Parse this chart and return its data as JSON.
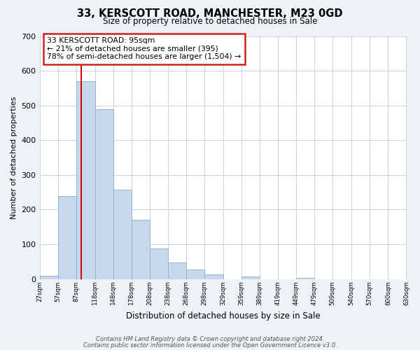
{
  "title": "33, KERSCOTT ROAD, MANCHESTER, M23 0GD",
  "subtitle": "Size of property relative to detached houses in Sale",
  "xlabel": "Distribution of detached houses by size in Sale",
  "ylabel": "Number of detached properties",
  "bar_edges": [
    27,
    57,
    87,
    118,
    148,
    178,
    208,
    238,
    268,
    298,
    329,
    359,
    389,
    419,
    449,
    479,
    509,
    540,
    570,
    600,
    630
  ],
  "bar_heights": [
    10,
    240,
    570,
    490,
    258,
    170,
    88,
    47,
    27,
    14,
    0,
    8,
    0,
    0,
    4,
    0,
    0,
    0,
    0,
    0
  ],
  "bar_color": "#c8d8ec",
  "bar_edgecolor": "#8ab0cc",
  "property_line_x": 95,
  "property_line_color": "#cc0000",
  "ylim": [
    0,
    700
  ],
  "yticks": [
    0,
    100,
    200,
    300,
    400,
    500,
    600,
    700
  ],
  "annotation_title": "33 KERSCOTT ROAD: 95sqm",
  "annotation_line1": "← 21% of detached houses are smaller (395)",
  "annotation_line2": "78% of semi-detached houses are larger (1,504) →",
  "footer1": "Contains HM Land Registry data © Crown copyright and database right 2024.",
  "footer2": "Contains public sector information licensed under the Open Government Licence v3.0.",
  "tick_labels": [
    "27sqm",
    "57sqm",
    "87sqm",
    "118sqm",
    "148sqm",
    "178sqm",
    "208sqm",
    "238sqm",
    "268sqm",
    "298sqm",
    "329sqm",
    "359sqm",
    "389sqm",
    "419sqm",
    "449sqm",
    "479sqm",
    "509sqm",
    "540sqm",
    "570sqm",
    "600sqm",
    "630sqm"
  ],
  "background_color": "#eef2f7",
  "plot_background": "#ffffff",
  "grid_color": "#c8d4e0"
}
